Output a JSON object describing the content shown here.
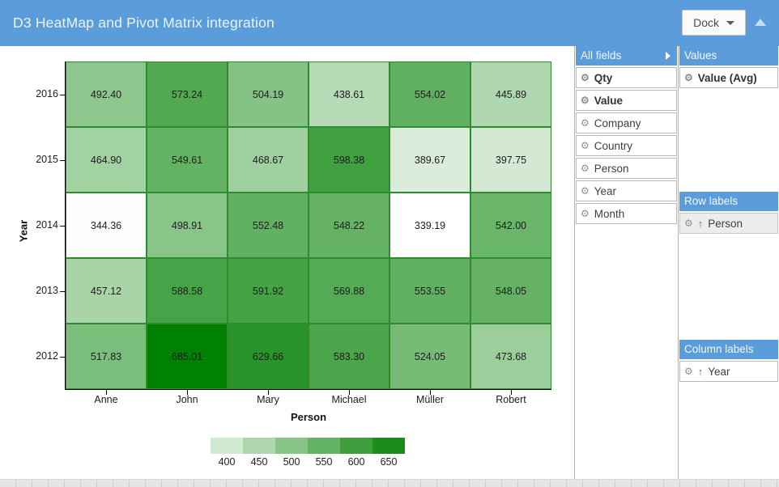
{
  "header": {
    "title": "D3 HeatMap and Pivot Matrix integration",
    "dock_label": "Dock"
  },
  "chart_data": {
    "type": "heatmap",
    "xlabel": "Person",
    "ylabel": "Year",
    "x_categories": [
      "Anne",
      "John",
      "Mary",
      "Michael",
      "Müller",
      "Robert"
    ],
    "y_categories": [
      "2016",
      "2015",
      "2014",
      "2013",
      "2012"
    ],
    "values": [
      [
        492.4,
        573.24,
        504.19,
        438.61,
        554.02,
        445.89
      ],
      [
        464.9,
        549.61,
        468.67,
        598.38,
        389.67,
        397.75
      ],
      [
        344.36,
        498.91,
        552.48,
        548.22,
        339.19,
        542.0
      ],
      [
        457.12,
        588.58,
        591.92,
        569.88,
        553.55,
        548.05
      ],
      [
        517.83,
        685.01,
        629.66,
        583.3,
        524.05,
        473.68
      ]
    ],
    "value_decimals": 2,
    "color_scale": {
      "min_value": 339.19,
      "max_value": 685.01,
      "min_color": "#ffffff",
      "max_color": "#008000"
    },
    "legend_values": [
      400,
      450,
      500,
      550,
      600,
      650
    ],
    "grid_line_color": "#2e8b2e",
    "legend_position": "bottom"
  },
  "panels": {
    "all_fields": {
      "title": "All fields",
      "items": [
        {
          "label": "Qty",
          "bold": true
        },
        {
          "label": "Value",
          "bold": true
        },
        {
          "label": "Company",
          "bold": false
        },
        {
          "label": "Country",
          "bold": false
        },
        {
          "label": "Person",
          "bold": false
        },
        {
          "label": "Year",
          "bold": false
        },
        {
          "label": "Month",
          "bold": false
        }
      ]
    },
    "values": {
      "title": "Values",
      "items": [
        {
          "label": "Value (Avg)",
          "bold": true
        }
      ]
    },
    "row_labels": {
      "title": "Row labels",
      "items": [
        {
          "label": "Person",
          "sort": "asc",
          "highlighted": true
        }
      ]
    },
    "column_labels": {
      "title": "Column labels",
      "items": [
        {
          "label": "Year",
          "sort": "asc",
          "highlighted": false
        }
      ]
    }
  },
  "icons": {
    "gear": "gear-icon",
    "sort_ascending": "arrow-up-icon",
    "dock_caret": "chevron-down-icon",
    "collapse": "chevron-up-icon",
    "fields_expander": "triangle-right-icon"
  },
  "colors": {
    "accent": "#5b9dda",
    "panel_border": "#b3b3b3",
    "item_border": "#b9b9b9"
  }
}
